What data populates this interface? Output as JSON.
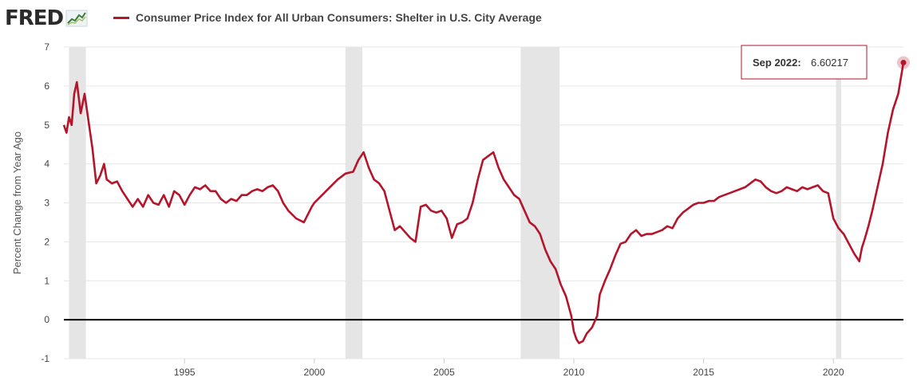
{
  "header": {
    "logo_text": "FRED",
    "logo_icon": "line-chart-icon",
    "legend_label": "Consumer Price Index for All Urban Consumers: Shelter in U.S. City Average"
  },
  "colors": {
    "series": "#b5152b",
    "recession": "#e5e5e5",
    "zero_line": "#000000",
    "grid": "#e6e6e6"
  },
  "tooltip": {
    "date_label": "Sep 2022:",
    "value_label": "6.60217"
  },
  "chart_data": {
    "type": "line",
    "title": "",
    "xlabel": "",
    "ylabel": "Percent Change from Year Ago",
    "xlim": [
      1990.35,
      2022.7
    ],
    "ylim": [
      -1,
      7
    ],
    "y_ticks": [
      "-1",
      "0",
      "1",
      "2",
      "3",
      "4",
      "5",
      "6",
      "7"
    ],
    "x_ticks": [
      "1995",
      "2000",
      "2005",
      "2010",
      "2015",
      "2020"
    ],
    "grid": "horizontal",
    "legend_position": "top",
    "recessions": [
      [
        1990.55,
        1991.2
      ],
      [
        2001.2,
        2001.85
      ],
      [
        2007.95,
        2009.45
      ],
      [
        2020.1,
        2020.3
      ]
    ],
    "series": [
      {
        "name": "Consumer Price Index for All Urban Consumers: Shelter in U.S. City Average",
        "x": [
          1990.35,
          1990.45,
          1990.55,
          1990.65,
          1990.75,
          1990.85,
          1991.0,
          1991.15,
          1991.3,
          1991.45,
          1991.6,
          1991.75,
          1991.9,
          1992.0,
          1992.2,
          1992.4,
          1992.6,
          1992.8,
          1993.0,
          1993.2,
          1993.4,
          1993.6,
          1993.8,
          1994.0,
          1994.2,
          1994.4,
          1994.6,
          1994.8,
          1995.0,
          1995.2,
          1995.4,
          1995.6,
          1995.8,
          1996.0,
          1996.2,
          1996.4,
          1996.6,
          1996.8,
          1997.0,
          1997.2,
          1997.4,
          1997.6,
          1997.8,
          1998.0,
          1998.2,
          1998.4,
          1998.6,
          1998.8,
          1999.0,
          1999.3,
          1999.6,
          1999.9,
          2000.0,
          2000.3,
          2000.6,
          2000.9,
          2001.2,
          2001.5,
          2001.7,
          2001.9,
          2002.1,
          2002.3,
          2002.5,
          2002.7,
          2002.9,
          2003.1,
          2003.3,
          2003.5,
          2003.7,
          2003.9,
          2004.1,
          2004.3,
          2004.5,
          2004.7,
          2004.9,
          2005.1,
          2005.3,
          2005.5,
          2005.7,
          2005.9,
          2006.1,
          2006.3,
          2006.5,
          2006.7,
          2006.9,
          2007.1,
          2007.3,
          2007.5,
          2007.7,
          2007.9,
          2008.1,
          2008.3,
          2008.5,
          2008.7,
          2008.9,
          2009.1,
          2009.3,
          2009.5,
          2009.7,
          2009.9,
          2010.0,
          2010.1,
          2010.2,
          2010.35,
          2010.5,
          2010.7,
          2010.9,
          2011.0,
          2011.2,
          2011.4,
          2011.6,
          2011.8,
          2012.0,
          2012.2,
          2012.4,
          2012.6,
          2012.8,
          2013.0,
          2013.2,
          2013.4,
          2013.6,
          2013.8,
          2014.0,
          2014.2,
          2014.4,
          2014.6,
          2014.8,
          2015.0,
          2015.2,
          2015.4,
          2015.6,
          2015.8,
          2016.0,
          2016.2,
          2016.4,
          2016.6,
          2016.8,
          2017.0,
          2017.2,
          2017.4,
          2017.6,
          2017.8,
          2018.0,
          2018.2,
          2018.4,
          2018.6,
          2018.8,
          2019.0,
          2019.2,
          2019.4,
          2019.6,
          2019.8,
          2020.0,
          2020.2,
          2020.4,
          2020.6,
          2020.8,
          2021.0,
          2021.1,
          2021.2,
          2021.35,
          2021.5,
          2021.7,
          2021.9,
          2022.1,
          2022.3,
          2022.5,
          2022.7
        ],
        "values": [
          5.0,
          4.8,
          5.2,
          5.0,
          5.8,
          6.1,
          5.3,
          5.8,
          5.1,
          4.4,
          3.5,
          3.7,
          4.0,
          3.6,
          3.5,
          3.55,
          3.3,
          3.1,
          2.9,
          3.1,
          2.9,
          3.2,
          3.0,
          2.95,
          3.2,
          2.9,
          3.3,
          3.2,
          2.95,
          3.2,
          3.4,
          3.35,
          3.45,
          3.3,
          3.3,
          3.1,
          3.0,
          3.1,
          3.05,
          3.2,
          3.2,
          3.3,
          3.35,
          3.3,
          3.4,
          3.45,
          3.3,
          3.0,
          2.8,
          2.6,
          2.5,
          2.9,
          3.0,
          3.2,
          3.4,
          3.6,
          3.75,
          3.8,
          4.1,
          4.3,
          3.9,
          3.6,
          3.5,
          3.3,
          2.8,
          2.3,
          2.4,
          2.25,
          2.1,
          2.0,
          2.9,
          2.95,
          2.8,
          2.75,
          2.8,
          2.6,
          2.1,
          2.45,
          2.5,
          2.6,
          3.0,
          3.6,
          4.1,
          4.2,
          4.3,
          3.9,
          3.6,
          3.4,
          3.2,
          3.1,
          2.8,
          2.5,
          2.4,
          2.2,
          1.8,
          1.5,
          1.3,
          0.9,
          0.6,
          0.1,
          -0.3,
          -0.5,
          -0.6,
          -0.55,
          -0.35,
          -0.2,
          0.1,
          0.65,
          1.0,
          1.3,
          1.65,
          1.95,
          2.0,
          2.2,
          2.3,
          2.15,
          2.2,
          2.2,
          2.25,
          2.3,
          2.4,
          2.35,
          2.6,
          2.75,
          2.85,
          2.95,
          3.0,
          3.0,
          3.05,
          3.05,
          3.15,
          3.2,
          3.25,
          3.3,
          3.35,
          3.4,
          3.5,
          3.6,
          3.55,
          3.4,
          3.3,
          3.25,
          3.3,
          3.4,
          3.35,
          3.3,
          3.4,
          3.35,
          3.4,
          3.45,
          3.3,
          3.25,
          2.6,
          2.35,
          2.2,
          1.95,
          1.7,
          1.5,
          1.85,
          2.05,
          2.4,
          2.8,
          3.4,
          4.0,
          4.8,
          5.4,
          5.8,
          6.6
        ]
      }
    ]
  }
}
